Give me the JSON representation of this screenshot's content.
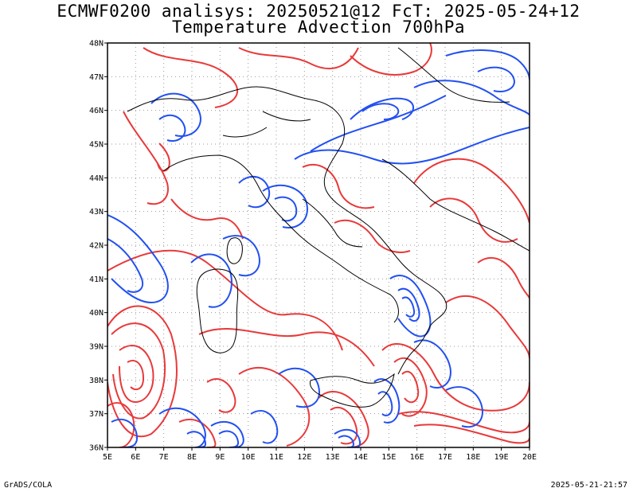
{
  "title_line1": "ECMWF0200 analisys: 20250521@12 FcT: 2025-05-24+12",
  "title_line2": "Temperature Advection 700hPa",
  "footer_left": "GrADS/COLA",
  "footer_right": "2025-05-21-21:57",
  "map": {
    "lon_range": [
      5,
      20
    ],
    "lat_range": [
      36,
      48
    ],
    "lon_ticks": [
      "5E",
      "6E",
      "7E",
      "8E",
      "9E",
      "10E",
      "11E",
      "12E",
      "13E",
      "14E",
      "15E",
      "16E",
      "17E",
      "18E",
      "19E",
      "20E"
    ],
    "lat_ticks": [
      "36N",
      "37N",
      "38N",
      "39N",
      "40N",
      "41N",
      "42N",
      "43N",
      "44N",
      "45N",
      "46N",
      "47N",
      "48N"
    ],
    "gridlines": true,
    "colors": {
      "warm_advection": "#e8393a",
      "cold_advection": "#2250f0",
      "coast": "#000000",
      "grid": "#999999"
    }
  }
}
